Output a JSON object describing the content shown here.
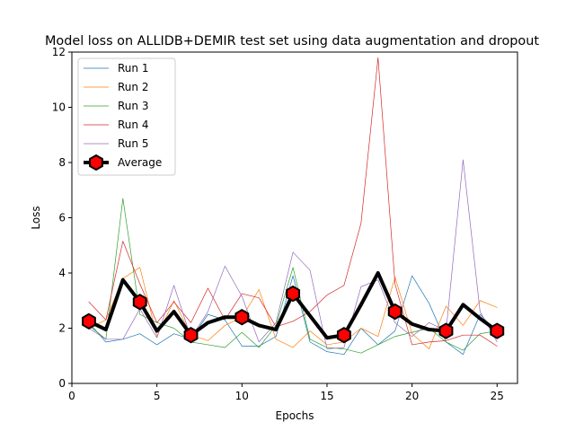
{
  "chart_data": {
    "type": "line",
    "title": "Model loss on ALLIDB+DEMIR test set using data augmentation and dropout",
    "xlabel": "Epochs",
    "ylabel": "Loss",
    "xlim": [
      0,
      26.2
    ],
    "ylim": [
      0,
      12
    ],
    "xticks": [
      0,
      5,
      10,
      15,
      20,
      25
    ],
    "yticks": [
      0,
      2,
      4,
      6,
      8,
      10,
      12
    ],
    "grid": false,
    "legend_position": "top-left",
    "x": [
      1,
      2,
      3,
      4,
      5,
      6,
      7,
      8,
      9,
      10,
      11,
      12,
      13,
      14,
      15,
      16,
      17,
      18,
      19,
      20,
      21,
      22,
      23,
      24,
      25
    ],
    "series": [
      {
        "name": "Run 1",
        "color": "#1f77b4",
        "values": [
          2.2,
          1.5,
          1.6,
          1.8,
          1.4,
          1.8,
          1.6,
          2.5,
          2.3,
          1.35,
          1.35,
          1.7,
          3.9,
          1.5,
          1.15,
          1.05,
          2.0,
          1.4,
          1.9,
          3.9,
          2.9,
          1.5,
          1.05,
          2.5,
          1.85
        ]
      },
      {
        "name": "Run 2",
        "color": "#ff7f0e",
        "values": [
          2.0,
          2.3,
          3.8,
          4.2,
          1.7,
          3.0,
          1.75,
          1.55,
          2.1,
          2.4,
          3.4,
          1.6,
          1.3,
          1.9,
          1.4,
          1.5,
          2.0,
          1.7,
          3.85,
          1.8,
          1.25,
          2.8,
          2.1,
          3.0,
          2.75
        ]
      },
      {
        "name": "Run 3",
        "color": "#2ca02c",
        "values": [
          2.1,
          1.6,
          6.7,
          2.5,
          2.2,
          2.0,
          1.5,
          1.4,
          1.3,
          1.85,
          1.3,
          2.1,
          4.2,
          1.6,
          1.3,
          1.25,
          1.1,
          1.4,
          1.7,
          1.85,
          2.0,
          1.5,
          1.2,
          1.8,
          1.9
        ]
      },
      {
        "name": "Run 4",
        "color": "#d62728",
        "values": [
          2.95,
          2.3,
          5.15,
          3.6,
          2.2,
          2.95,
          2.2,
          3.45,
          2.3,
          3.25,
          3.1,
          2.05,
          2.25,
          2.6,
          3.2,
          3.55,
          5.8,
          11.8,
          3.6,
          1.4,
          1.5,
          1.55,
          1.75,
          1.75,
          1.35
        ]
      },
      {
        "name": "Run 5",
        "color": "#9467bd",
        "values": [
          2.0,
          1.6,
          1.6,
          2.7,
          1.65,
          3.55,
          1.65,
          2.6,
          4.25,
          3.15,
          1.5,
          2.2,
          4.75,
          4.1,
          1.25,
          1.3,
          3.5,
          3.75,
          2.2,
          1.7,
          2.2,
          1.9,
          8.1,
          2.6,
          1.5
        ]
      },
      {
        "name": "Average",
        "color": "#000000",
        "marker_color": "#ff0000",
        "values": [
          2.25,
          1.95,
          3.75,
          2.95,
          1.9,
          2.6,
          1.75,
          2.2,
          2.4,
          2.4,
          2.1,
          1.95,
          3.25,
          2.45,
          1.65,
          1.75,
          2.85,
          4.0,
          2.6,
          2.15,
          1.95,
          1.9,
          2.85,
          2.35,
          1.9
        ]
      }
    ]
  }
}
